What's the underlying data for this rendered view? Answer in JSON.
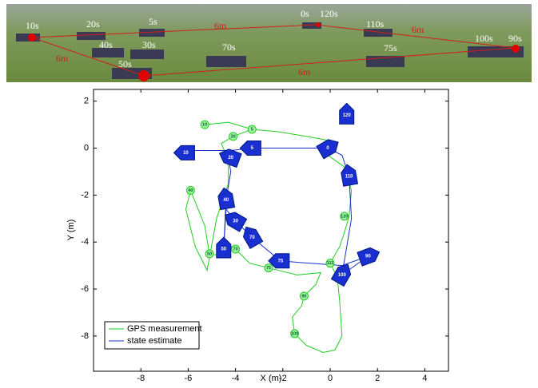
{
  "photo": {
    "labels": [
      "10s",
      "20s",
      "5s",
      "6m",
      "0s",
      "120s",
      "110s",
      "6m",
      "6m",
      "40s",
      "30s",
      "70s",
      "75s",
      "100s",
      "90s",
      "50s",
      "6m"
    ]
  },
  "chart_data": {
    "type": "line",
    "xlabel": "X (m)",
    "ylabel": "Y (m)",
    "xlim": [
      -10,
      5
    ],
    "ylim": [
      -9.5,
      2.5
    ],
    "xticks": [
      -8,
      -6,
      -4,
      -2,
      0,
      2,
      4
    ],
    "yticks": [
      2,
      0,
      -2,
      -4,
      -6,
      -8
    ],
    "legend": "lower left",
    "series": [
      {
        "name": "GPS measurement",
        "color": "#22cc22",
        "x": [
          -5.3,
          -4.3,
          -3.3,
          -2.2,
          -1.0,
          0.1,
          0.2,
          -0.1,
          0.6,
          0.9,
          0.8,
          0.6,
          0.4,
          0.0,
          0.3,
          0.4,
          0.5,
          0.2,
          -0.3,
          -1.0,
          -1.5,
          -1.6,
          -1.2,
          -1.1,
          -0.6,
          -0.4,
          -1.4,
          -2.6,
          -3.4,
          -4.0,
          -4.3,
          -4.5,
          -5.1,
          -5.3,
          -5.9,
          -6.1,
          -5.7,
          -5.2,
          -4.8,
          -4.3,
          -4.3,
          -4.6,
          -4.1,
          -3.3
        ],
        "y": [
          1.0,
          1.1,
          0.8,
          0.7,
          0.5,
          0.3,
          -0.1,
          -0.3,
          -0.8,
          -1.8,
          -2.9,
          -3.6,
          -4.2,
          -4.9,
          -5.5,
          -6.5,
          -8.0,
          -8.6,
          -8.7,
          -8.4,
          -7.9,
          -7.2,
          -6.7,
          -6.3,
          -5.8,
          -5.3,
          -5.4,
          -5.1,
          -4.9,
          -4.3,
          -4.1,
          -4.6,
          -4.5,
          -3.3,
          -1.8,
          -2.6,
          -4.2,
          -5.2,
          -3.0,
          -1.5,
          -0.5,
          0.2,
          0.5,
          0.8
        ]
      },
      {
        "name": "state estimate",
        "color": "#1a2fd0",
        "x": [
          -6.1,
          -4.2,
          -3.3,
          -1.5,
          -0.1,
          0.5,
          0.8,
          0.9,
          0.7,
          0.5,
          1.6,
          0.5,
          -0.9,
          -2.1,
          -3.3,
          -4.0,
          -4.4,
          -4.5,
          -4.4,
          -4.2,
          -4.3
        ],
        "y": [
          -0.1,
          -0.1,
          0.0,
          0.0,
          0.0,
          -0.3,
          -1.2,
          -3.0,
          -4.2,
          -5.4,
          -4.6,
          -5.0,
          -4.9,
          -4.8,
          -3.8,
          -3.1,
          -2.6,
          -4.3,
          -2.2,
          -1.0,
          -0.4
        ]
      }
    ],
    "gps_labels": [
      {
        "label": "10",
        "x": -5.3,
        "y": 1.0
      },
      {
        "label": "5",
        "x": -3.3,
        "y": 0.8
      },
      {
        "label": "20",
        "x": -4.1,
        "y": 0.5
      },
      {
        "label": "40",
        "x": -5.9,
        "y": -1.8
      },
      {
        "label": "50",
        "x": -5.1,
        "y": -4.5
      },
      {
        "label": "70",
        "x": -4.0,
        "y": -4.3
      },
      {
        "label": "75",
        "x": -2.6,
        "y": -5.1
      },
      {
        "label": "111",
        "x": 0.0,
        "y": -4.9
      },
      {
        "label": "120",
        "x": 0.6,
        "y": -2.9
      },
      {
        "label": "90",
        "x": -1.1,
        "y": -6.3
      },
      {
        "label": "100",
        "x": -1.5,
        "y": -7.9
      }
    ],
    "poses": [
      {
        "label": "120",
        "x": 0.7,
        "y": 1.4,
        "heading": 90
      },
      {
        "label": "0",
        "x": -0.1,
        "y": 0.0,
        "heading": 30
      },
      {
        "label": "5",
        "x": -3.3,
        "y": 0.0,
        "heading": 180
      },
      {
        "label": "10",
        "x": -6.1,
        "y": -0.2,
        "heading": 180
      },
      {
        "label": "20",
        "x": -4.2,
        "y": -0.4,
        "heading": 160
      },
      {
        "label": "110",
        "x": 0.8,
        "y": -1.2,
        "heading": 100
      },
      {
        "label": "40",
        "x": -4.4,
        "y": -2.2,
        "heading": 100
      },
      {
        "label": "30",
        "x": -4.0,
        "y": -3.1,
        "heading": 150
      },
      {
        "label": "70",
        "x": -3.3,
        "y": -3.8,
        "heading": 120
      },
      {
        "label": "50",
        "x": -4.5,
        "y": -4.3,
        "heading": 90
      },
      {
        "label": "75",
        "x": -2.1,
        "y": -4.8,
        "heading": 180
      },
      {
        "label": "90",
        "x": 1.6,
        "y": -4.6,
        "heading": 20
      },
      {
        "label": "100",
        "x": 0.5,
        "y": -5.4,
        "heading": 60
      }
    ]
  }
}
